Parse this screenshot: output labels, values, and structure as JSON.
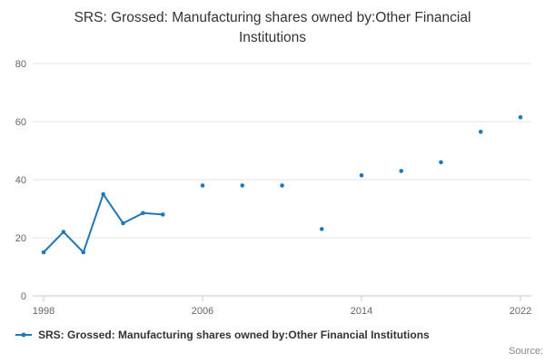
{
  "chart": {
    "title": "SRS: Grossed: Manufacturing shares owned by:Other Financial Institutions"
  },
  "chart_data": {
    "type": "line",
    "title": "SRS: Grossed: Manufacturing shares owned by:Other Financial Institutions",
    "series": [
      {
        "name": "SRS: Grossed: Manufacturing shares owned by:Other Financial Institutions",
        "points": [
          {
            "x": 1998,
            "y": 15
          },
          {
            "x": 1999,
            "y": 22
          },
          {
            "x": 2000,
            "y": 15
          },
          {
            "x": 2001,
            "y": 35
          },
          {
            "x": 2002,
            "y": 25
          },
          {
            "x": 2003,
            "y": 28.5
          },
          {
            "x": 2004,
            "y": 28
          },
          {
            "x": 2006,
            "y": 38
          },
          {
            "x": 2008,
            "y": 38
          },
          {
            "x": 2010,
            "y": 38
          },
          {
            "x": 2012,
            "y": 23
          },
          {
            "x": 2014,
            "y": 41.5
          },
          {
            "x": 2016,
            "y": 43
          },
          {
            "x": 2018,
            "y": 46
          },
          {
            "x": 2020,
            "y": 56.5
          },
          {
            "x": 2022,
            "y": 61.5
          }
        ]
      }
    ],
    "connect_max_gap": 1,
    "x_ticks": [
      1998,
      2006,
      2014,
      2022
    ],
    "y_ticks": [
      0,
      20,
      40,
      60,
      80
    ],
    "xlim": [
      1997.45,
      2022.55
    ],
    "ylim": [
      0,
      80
    ],
    "grid": "horizontal-only",
    "legend_position": "bottom-left",
    "color": "#2079b7",
    "grid_color": "#e6e6e6",
    "axis_color": "#c9c9c9",
    "tick_label_color": "#666666",
    "xlabel": "",
    "ylabel": ""
  },
  "legend": {
    "label": "SRS: Grossed: Manufacturing shares owned by:Other Financial Institutions"
  },
  "footer": {
    "source_label": "Source:"
  }
}
